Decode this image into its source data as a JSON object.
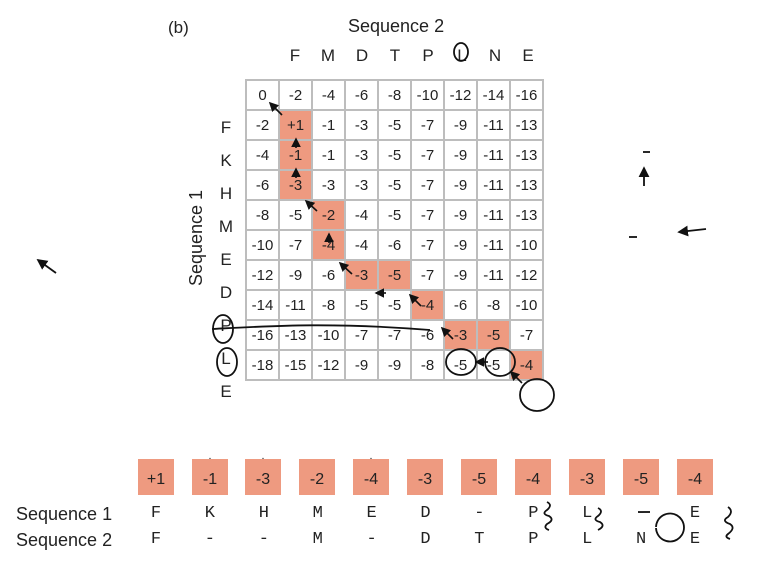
{
  "panel_label": "(b)",
  "sequence2_title": "Sequence 2",
  "sequence1_title": "Sequence 1",
  "columns": [
    "F",
    "M",
    "D",
    "T",
    "P",
    "L",
    "N",
    "E"
  ],
  "rows": [
    "F",
    "K",
    "H",
    "M",
    "E",
    "D",
    "P",
    "L",
    "E"
  ],
  "matrix": [
    [
      "0",
      "-2",
      "-4",
      "-6",
      "-8",
      "-10",
      "-12",
      "-14",
      "-16"
    ],
    [
      "-2",
      "+1",
      "-1",
      "-3",
      "-5",
      "-7",
      "-9",
      "-11",
      "-13"
    ],
    [
      "-4",
      "-1",
      "-1",
      "-3",
      "-5",
      "-7",
      "-9",
      "-11",
      "-13"
    ],
    [
      "-6",
      "-3",
      "-3",
      "-3",
      "-5",
      "-7",
      "-9",
      "-11",
      "-13"
    ],
    [
      "-8",
      "-5",
      "-2",
      "-4",
      "-5",
      "-7",
      "-9",
      "-11",
      "-13"
    ],
    [
      "-10",
      "-7",
      "-4",
      "-4",
      "-6",
      "-7",
      "-9",
      "-11",
      "-10"
    ],
    [
      "-12",
      "-9",
      "-6",
      "-3",
      "-5",
      "-7",
      "-9",
      "-11",
      "-12"
    ],
    [
      "-14",
      "-11",
      "-8",
      "-5",
      "-5",
      "-4",
      "-6",
      "-8",
      "-10"
    ],
    [
      "-16",
      "-13",
      "-10",
      "-7",
      "-7",
      "-6",
      "-3",
      "-5",
      "-7"
    ],
    [
      "-18",
      "-15",
      "-12",
      "-9",
      "-9",
      "-8",
      "-5",
      "-5",
      "-4"
    ]
  ],
  "highlighted_cells": [
    [
      1,
      1
    ],
    [
      2,
      1
    ],
    [
      3,
      1
    ],
    [
      4,
      2
    ],
    [
      5,
      2
    ],
    [
      6,
      3
    ],
    [
      6,
      4
    ],
    [
      7,
      5
    ],
    [
      8,
      6
    ],
    [
      8,
      7
    ],
    [
      9,
      8
    ]
  ],
  "path_scores": [
    "+1",
    "-1",
    "-3",
    "-2",
    "-4",
    "-3",
    "-5",
    "-4",
    "-3",
    "-5",
    "-4"
  ],
  "path_arrows": [
    "diag",
    "up",
    "up",
    "diag",
    "up",
    "diag",
    "left",
    "diag",
    "diag",
    "left",
    "diag"
  ],
  "alignment": {
    "seq1_label": "Sequence 1",
    "seq2_label": "Sequence 2",
    "seq1": [
      "F",
      "K",
      "H",
      "M",
      "E",
      "D",
      "-",
      "P",
      "L",
      "-",
      "E"
    ],
    "seq2": [
      "F",
      "-",
      "-",
      "M",
      "-",
      "D",
      "T",
      "P",
      "L",
      "N",
      "E"
    ]
  },
  "colors": {
    "highlight": "#ee9a80",
    "grid_line": "#bdbdbd"
  }
}
